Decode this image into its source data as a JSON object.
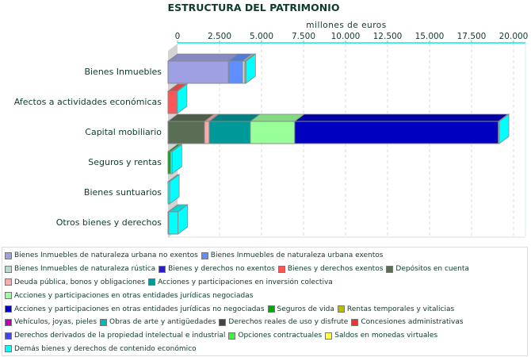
{
  "chart_data": {
    "type": "bar",
    "orientation": "horizontal",
    "stacked": true,
    "style": "3d",
    "title": "ESTRUCTURA DEL PATRIMONIO",
    "xlabel": "millones de euros",
    "xlim": [
      0,
      20000
    ],
    "xticks": [
      "0",
      "2.500",
      "5.000",
      "7.500",
      "10.000",
      "12.500",
      "15.000",
      "17.500",
      "20.000"
    ],
    "xtick_values": [
      0,
      2500,
      5000,
      7500,
      10000,
      12500,
      15000,
      17500,
      20000
    ],
    "grid": true,
    "legend_position": "bottom",
    "categories": [
      "Bienes Inmuebles",
      "Afectos a actividades económicas",
      "Capital mobiliario",
      "Seguros y rentas",
      "Bienes suntuarios",
      "Otros bienes y derechos"
    ],
    "series": [
      {
        "name": "Bienes Inmuebles de naturaleza urbana no exentos",
        "color": "#9f9fe4",
        "values": [
          3600,
          0,
          0,
          0,
          0,
          0
        ]
      },
      {
        "name": "Bienes Inmuebles de naturaleza urbana exentos",
        "color": "#5f8fff",
        "values": [
          830,
          0,
          0,
          0,
          0,
          0
        ]
      },
      {
        "name": "Bienes Inmuebles de naturaleza rústica",
        "color": "#b8d8d0",
        "values": [
          150,
          0,
          0,
          0,
          0,
          0
        ]
      },
      {
        "name": "Bienes y derechos no exentos",
        "color": "#2a1ad8",
        "values": [
          0,
          0,
          0,
          0,
          0,
          0
        ]
      },
      {
        "name": "Bienes y derechos exentos",
        "color": "#ff5555",
        "values": [
          0,
          520,
          0,
          0,
          0,
          0
        ]
      },
      {
        "name": "Depósitos en cuenta",
        "color": "#5a6e55",
        "values": [
          0,
          0,
          2170,
          0,
          0,
          0
        ]
      },
      {
        "name": "Deuda pública, bonos y obligaciones",
        "color": "#ffaaaa",
        "values": [
          0,
          0,
          280,
          0,
          0,
          0
        ]
      },
      {
        "name": "Acciones y participaciones en inversión colectiva",
        "color": "#009999",
        "values": [
          0,
          0,
          2450,
          0,
          0,
          0
        ]
      },
      {
        "name": "Acciones y participaciones en otras entidades jurídicas negociadas",
        "color": "#99ff99",
        "values": [
          0,
          0,
          2640,
          0,
          0,
          0
        ]
      },
      {
        "name": "Acciones y participaciones en otras entidades jurídicas no negociadas",
        "color": "#0000c0",
        "values": [
          0,
          0,
          12120,
          0,
          0,
          0
        ]
      },
      {
        "name": "Seguros de vida",
        "color": "#00aa00",
        "values": [
          0,
          0,
          0,
          150,
          0,
          0
        ]
      },
      {
        "name": "Rentas temporales y vitalicias",
        "color": "#bbbb00",
        "values": [
          0,
          0,
          0,
          0,
          0,
          0
        ]
      },
      {
        "name": "Vehículos, joyas, pieles",
        "color": "#bb00bb",
        "values": [
          0,
          0,
          0,
          0,
          0,
          0
        ]
      },
      {
        "name": "Obras de arte y antigüedades",
        "color": "#00bbbb",
        "values": [
          0,
          0,
          0,
          0,
          0,
          0
        ]
      },
      {
        "name": "Derechos reales de uso y disfrute",
        "color": "#444444",
        "values": [
          0,
          0,
          0,
          0,
          0,
          40
        ]
      },
      {
        "name": "Concesiones administrativas",
        "color": "#ee3333",
        "values": [
          0,
          0,
          0,
          0,
          0,
          0
        ]
      },
      {
        "name": "Derechos derivados de la propiedad intelectual e industrial",
        "color": "#4444ee",
        "values": [
          0,
          0,
          0,
          0,
          0,
          0
        ]
      },
      {
        "name": "Opciones contractuales",
        "color": "#44ee44",
        "values": [
          0,
          0,
          0,
          0,
          0,
          0
        ]
      },
      {
        "name": "Saldos en monedas virtuales",
        "color": "#ffff44",
        "values": [
          0,
          0,
          0,
          0,
          0,
          0
        ]
      },
      {
        "name": "Demás bienes y derechos de contenido económico",
        "color": "#00ffff",
        "values": [
          60,
          40,
          60,
          100,
          100,
          560
        ]
      }
    ]
  }
}
